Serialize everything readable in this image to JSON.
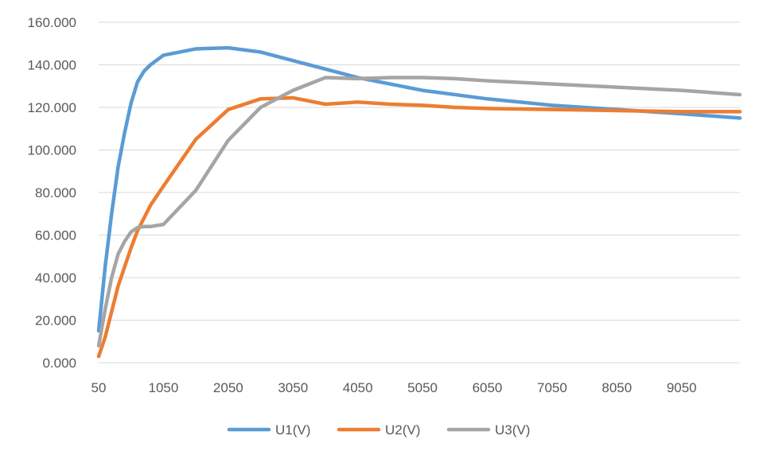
{
  "chart_data": {
    "type": "line",
    "title": "",
    "xlabel": "",
    "ylabel": "",
    "x_tick_labels": [
      "50",
      "1050",
      "2050",
      "3050",
      "4050",
      "5050",
      "6050",
      "7050",
      "8050",
      "9050"
    ],
    "x_ticks": [
      50,
      1050,
      2050,
      3050,
      4050,
      5050,
      6050,
      7050,
      8050,
      9050
    ],
    "xlim": [
      50,
      9950
    ],
    "y_tick_labels": [
      "0.000",
      "20.000",
      "40.000",
      "60.000",
      "80.000",
      "100.000",
      "120.000",
      "140.000",
      "160.000"
    ],
    "y_ticks": [
      0,
      20,
      40,
      60,
      80,
      100,
      120,
      140,
      160
    ],
    "ylim": [
      0,
      160
    ],
    "grid": true,
    "legend_position": "bottom",
    "series": [
      {
        "name": "U1(V)",
        "color": "#5b9bd5",
        "x": [
          50,
          150,
          250,
          350,
          450,
          550,
          650,
          750,
          850,
          1050,
          1550,
          2050,
          2550,
          3050,
          3550,
          4050,
          4550,
          5050,
          5550,
          6050,
          7050,
          8050,
          9050,
          9950
        ],
        "y": [
          15,
          45,
          70,
          92,
          108,
          122,
          132,
          137,
          140,
          144.5,
          147.5,
          148,
          146,
          142,
          138,
          134,
          131,
          128,
          126,
          124,
          121,
          119,
          117,
          115
        ]
      },
      {
        "name": "U2(V)",
        "color": "#ed7d31",
        "x": [
          50,
          150,
          250,
          350,
          450,
          550,
          650,
          750,
          850,
          1050,
          1550,
          2050,
          2550,
          3050,
          3550,
          4050,
          4550,
          5050,
          5550,
          6050,
          7050,
          8050,
          9050,
          9950
        ],
        "y": [
          3,
          12,
          24,
          36,
          45,
          54,
          62,
          68,
          74,
          83,
          105,
          119,
          124,
          124.5,
          121.5,
          122.5,
          121.5,
          121,
          120,
          119.5,
          119,
          118.5,
          118,
          118
        ]
      },
      {
        "name": "U3(V)",
        "color": "#a5a5a5",
        "x": [
          50,
          150,
          250,
          350,
          450,
          550,
          650,
          750,
          850,
          1050,
          1550,
          2050,
          2550,
          3050,
          3550,
          4050,
          4550,
          5050,
          5550,
          6050,
          7050,
          8050,
          9050,
          9950
        ],
        "y": [
          8,
          25,
          40,
          51,
          57,
          61.5,
          63.5,
          64,
          64,
          65,
          81,
          104.5,
          120,
          128,
          134,
          133.5,
          134,
          134,
          133.5,
          132.5,
          131,
          129.5,
          128,
          126
        ]
      }
    ]
  }
}
